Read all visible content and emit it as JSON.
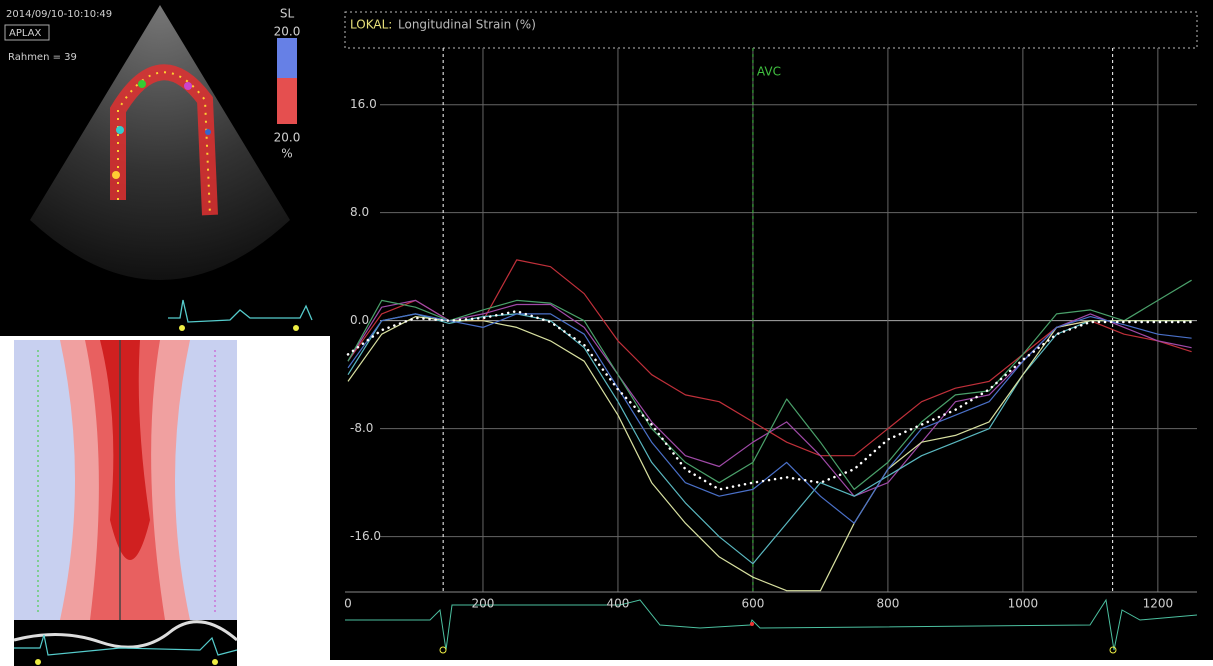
{
  "echo": {
    "timestamp": "2014/09/10-10:10:49",
    "view": "APLAX",
    "frame": "Rahmen = 39",
    "scale_title": "SL",
    "scale_max": "20.0",
    "scale_min": "20.0",
    "scale_unit": "%"
  },
  "chart_data": {
    "type": "line",
    "title_prefix": "LOKAL:",
    "title": "Longitudinal Strain (%)",
    "x": [
      0,
      50,
      100,
      150,
      200,
      250,
      300,
      350,
      400,
      450,
      500,
      550,
      600,
      650,
      700,
      750,
      800,
      850,
      900,
      950,
      1000,
      1050,
      1100,
      1150,
      1200,
      1250
    ],
    "series": [
      {
        "color": "#c0303a",
        "values": [
          -3,
          0.5,
          1.5,
          0,
          0,
          4.5,
          4,
          2,
          -1.5,
          -4,
          -5.5,
          -6,
          -7.5,
          -9,
          -10,
          -10,
          -8,
          -6,
          -5,
          -4.5,
          -2.5,
          -0.5,
          0,
          -1,
          -1.5,
          -2.3
        ]
      },
      {
        "color": "#a04aa8",
        "values": [
          -3,
          1,
          1.5,
          0,
          0.5,
          1.2,
          1.2,
          -0.5,
          -4,
          -7.5,
          -10,
          -10.8,
          -9,
          -7.5,
          -10,
          -13,
          -12,
          -9,
          -6,
          -5.5,
          -3,
          -0.5,
          0.5,
          -0.5,
          -1.5,
          -2
        ]
      },
      {
        "color": "#4aa06a",
        "values": [
          -3,
          1.5,
          1,
          0,
          0.8,
          1.5,
          1.3,
          0,
          -4,
          -8,
          -10.5,
          -12,
          -10.5,
          -5.8,
          -9,
          -12.5,
          -10.5,
          -7.5,
          -5.5,
          -5.2,
          -2.5,
          0.5,
          0.8,
          0,
          1.5,
          3
        ]
      },
      {
        "color": "#5ab8c0",
        "values": [
          -4,
          0,
          0.5,
          -0.2,
          0.3,
          0.5,
          0,
          -2,
          -6,
          -10.5,
          -13.5,
          -16,
          -18,
          -15,
          -12,
          -13,
          -11.5,
          -10,
          -9,
          -8,
          -4,
          -1,
          0,
          0,
          0,
          0
        ]
      },
      {
        "color": "#d8e0a0",
        "values": [
          -4.5,
          -1,
          0.3,
          0,
          0,
          -0.5,
          -1.5,
          -3,
          -7,
          -12,
          -15,
          -17.5,
          -19,
          -20,
          -20,
          -15,
          -11,
          -9,
          -8.5,
          -7.5,
          -4,
          -0.5,
          0,
          0,
          0,
          0
        ]
      },
      {
        "color": "#4a70c8",
        "values": [
          -3.5,
          0,
          0.5,
          0,
          -0.5,
          0.5,
          0.5,
          -1,
          -5,
          -9,
          -12,
          -13,
          -12.5,
          -10.5,
          -13,
          -15,
          -11,
          -8,
          -7,
          -6,
          -3,
          -0.5,
          0.3,
          -0.3,
          -1,
          -1.3
        ]
      },
      {
        "color": "#ffffff",
        "dash": "dotted",
        "values": [
          -2.5,
          -0.7,
          0.2,
          0,
          0.2,
          0.7,
          -0.1,
          -1.8,
          -5.1,
          -7.7,
          -11,
          -12.5,
          -12,
          -11.6,
          -12,
          -11,
          -8.8,
          -7.7,
          -6.6,
          -5.1,
          -2.9,
          -1,
          -0.1,
          -0.1,
          -0.1,
          -0.1
        ]
      }
    ],
    "markers": [
      {
        "value": 141,
        "color": "#ffffff"
      },
      {
        "value": 600,
        "label": "AVC",
        "color": "#40c040"
      },
      {
        "value": 1133,
        "color": "#ffffff"
      }
    ],
    "xlim": [
      0,
      1258
    ],
    "ylim": [
      -20.1,
      20.2
    ],
    "xticks": [
      0,
      200,
      400,
      600,
      800,
      1000,
      1200
    ],
    "yticks": [
      {
        "value": -16,
        "label": "-16.0"
      },
      {
        "value": -8,
        "label": "-8.0"
      },
      {
        "value": 0,
        "label": "0.0"
      },
      {
        "value": 8,
        "label": "8.0"
      },
      {
        "value": 16,
        "label": "16.0"
      }
    ],
    "grid": true
  }
}
